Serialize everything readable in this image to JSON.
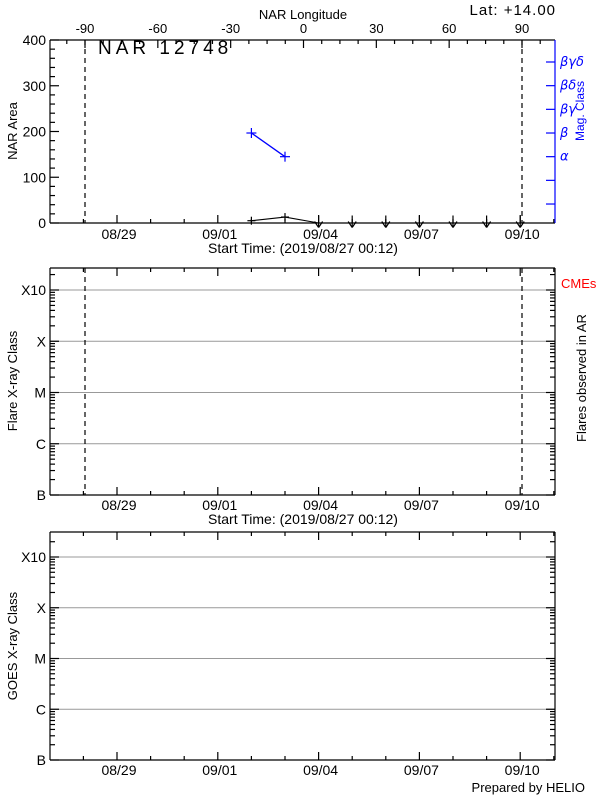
{
  "colors": {
    "axis": "#000000",
    "mag": "#0000ff",
    "cme": "#ff0000",
    "grid": "#999999",
    "background": "#ffffff"
  },
  "chart_data": [
    {
      "type": "line",
      "title": "NAR 12748",
      "subtitle": "Lat: +14.00",
      "xlabel": "Start Time: (2019/08/27 00:12)",
      "ylabel": "NAR Area",
      "ylim": [
        0,
        400
      ],
      "yticks": [
        0,
        100,
        200,
        300,
        400
      ],
      "xticks": [
        "08/29",
        "09/01",
        "09/04",
        "09/07",
        "09/10"
      ],
      "top_axis": {
        "label": "NAR Longitude",
        "ticks": [
          -90,
          -60,
          -30,
          0,
          30,
          60,
          90
        ],
        "limb_dashed_lines": [
          -90,
          90
        ]
      },
      "right_axis": {
        "label": "Mag. Class",
        "tick_labels_top_to_bottom": [
          "βγδ",
          "βδ",
          "βγ",
          "β",
          "α"
        ],
        "extra_unlabeled_ticks": 2
      },
      "series": [
        {
          "name": "NAR area",
          "color": "#000000",
          "marker": "plus",
          "points": [
            {
              "date": "09/02",
              "value": 5
            },
            {
              "date": "09/03",
              "value": 13
            }
          ],
          "upper_limit_zero_dates": [
            "09/04",
            "09/05",
            "09/06",
            "09/07",
            "09/08",
            "09/09",
            "09/10"
          ]
        },
        {
          "name": "Magnetic classification",
          "color": "#0000ff",
          "marker": "plus",
          "points": [
            {
              "date": "09/02",
              "class": "β"
            },
            {
              "date": "09/03",
              "class": "α"
            }
          ]
        }
      ]
    },
    {
      "type": "line",
      "xlabel": "Start Time: (2019/08/27 00:12)",
      "ylabel": "Flare X-ray Class",
      "yticks_top_to_bottom": [
        "X10",
        "X",
        "M",
        "C",
        "B"
      ],
      "xticks": [
        "08/29",
        "09/01",
        "09/04",
        "09/07",
        "09/10"
      ],
      "gridline_levels": [
        "X10",
        "X",
        "M",
        "C"
      ],
      "limb_dashed_lines": true,
      "right_labels": {
        "cmes": "CMEs",
        "side": "Flares observed in AR"
      },
      "series": []
    },
    {
      "type": "line",
      "ylabel": "GOES X-ray Class",
      "yticks_top_to_bottom": [
        "X10",
        "X",
        "M",
        "C",
        "B"
      ],
      "xticks": [
        "08/29",
        "09/01",
        "09/04",
        "09/07",
        "09/10"
      ],
      "gridline_levels": [
        "X10",
        "X",
        "M",
        "C"
      ],
      "limb_dashed_lines": false,
      "footer": "Prepared by HELIO",
      "series": []
    }
  ]
}
